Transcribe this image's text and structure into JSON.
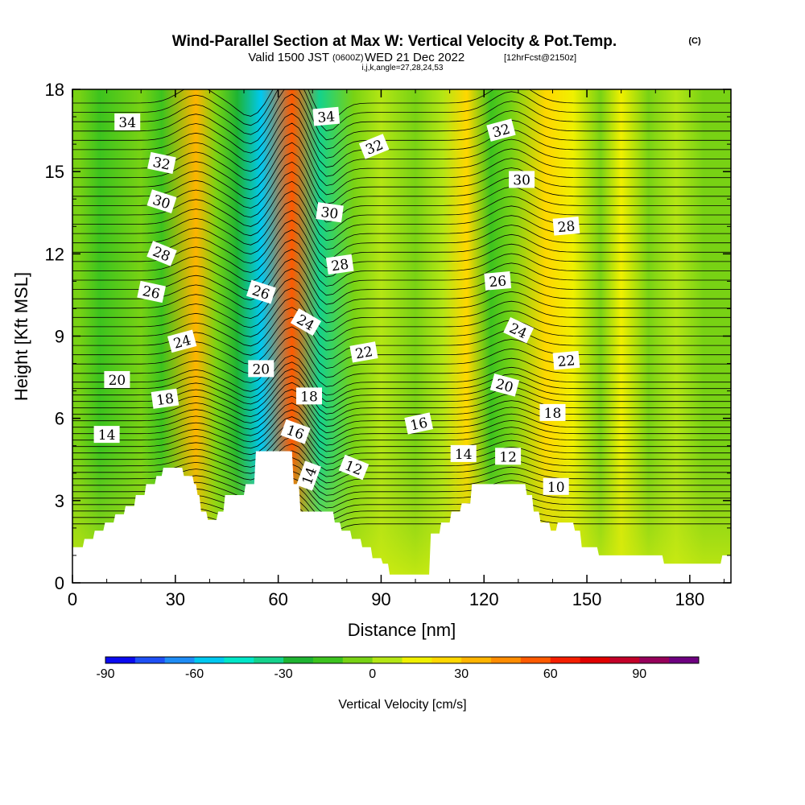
{
  "header": {
    "title": "Wind-Parallel Section at Max W: Vertical Velocity & Pot.Temp.",
    "title_suffix": "(C)",
    "subtitle_a": "Valid 1500 JST",
    "subtitle_b": "(0600Z)",
    "subtitle_c": "WED 21 Dec 2022",
    "subtitle_d": "[12hrFcst@2150z]",
    "subtitle_e": "i,j,k,angle=27,28,24,53"
  },
  "chart_data": {
    "type": "heatmap",
    "xlabel": "Distance [nm]",
    "ylabel": "Height [Kft MSL]",
    "xlim": [
      0,
      192
    ],
    "ylim": [
      0,
      18
    ],
    "x_ticks": [
      "0",
      "30",
      "60",
      "90",
      "120",
      "150",
      "180"
    ],
    "y_ticks": [
      "0",
      "3",
      "6",
      "9",
      "12",
      "15",
      "18"
    ],
    "colorbar": {
      "label": "Vertical Velocity [cm/s]",
      "range": [
        -90,
        110
      ],
      "ticks": [
        "-90",
        "-60",
        "-30",
        "0",
        "30",
        "60",
        "90"
      ],
      "colors": [
        "#0a0af0",
        "#1e50f5",
        "#1e8cf5",
        "#00c8f0",
        "#00e6c8",
        "#14d28c",
        "#1eb432",
        "#3cc31e",
        "#78d214",
        "#b4e614",
        "#f0f000",
        "#ffd700",
        "#ffb400",
        "#ff8c00",
        "#ff5a00",
        "#f51e00",
        "#e10000",
        "#c30028",
        "#96005a",
        "#6e0080"
      ]
    },
    "vertical_velocity_bands": [
      {
        "x": 2,
        "w": -8
      },
      {
        "x": 8,
        "w": -12
      },
      {
        "x": 20,
        "w": -10
      },
      {
        "x": 26,
        "w": -15
      },
      {
        "x": 36,
        "w": 30
      },
      {
        "x": 42,
        "w": -5
      },
      {
        "x": 48,
        "w": -25
      },
      {
        "x": 55,
        "w": -60
      },
      {
        "x": 64,
        "w": 55
      },
      {
        "x": 72,
        "w": -40
      },
      {
        "x": 82,
        "w": -5
      },
      {
        "x": 90,
        "w": 8
      },
      {
        "x": 100,
        "w": -10
      },
      {
        "x": 108,
        "w": 5
      },
      {
        "x": 115,
        "w": 20
      },
      {
        "x": 122,
        "w": -20
      },
      {
        "x": 128,
        "w": -5
      },
      {
        "x": 138,
        "w": 20
      },
      {
        "x": 146,
        "w": 10
      },
      {
        "x": 154,
        "w": -8
      },
      {
        "x": 160,
        "w": 12
      },
      {
        "x": 168,
        "w": -10
      },
      {
        "x": 176,
        "w": 0
      },
      {
        "x": 184,
        "w": -3
      }
    ],
    "isentropes": [
      10,
      12,
      14,
      16,
      18,
      20,
      22,
      24,
      26,
      28,
      30,
      32,
      34
    ],
    "isentrope_labels": [
      {
        "text": "34",
        "x": 16,
        "y": 16.8,
        "rot": 0
      },
      {
        "text": "34",
        "x": 74,
        "y": 17.0,
        "rot": -5
      },
      {
        "text": "32",
        "x": 26,
        "y": 15.3,
        "rot": 12
      },
      {
        "text": "32",
        "x": 88,
        "y": 15.9,
        "rot": -22
      },
      {
        "text": "32",
        "x": 125,
        "y": 16.5,
        "rot": -15
      },
      {
        "text": "30",
        "x": 26,
        "y": 13.9,
        "rot": 18
      },
      {
        "text": "30",
        "x": 75,
        "y": 13.5,
        "rot": 8
      },
      {
        "text": "30",
        "x": 131,
        "y": 14.7,
        "rot": 0
      },
      {
        "text": "28",
        "x": 26,
        "y": 12.0,
        "rot": 22
      },
      {
        "text": "28",
        "x": 78,
        "y": 11.6,
        "rot": -8
      },
      {
        "text": "28",
        "x": 144,
        "y": 13.0,
        "rot": -5
      },
      {
        "text": "26",
        "x": 23,
        "y": 10.6,
        "rot": 12
      },
      {
        "text": "26",
        "x": 55,
        "y": 10.6,
        "rot": 18
      },
      {
        "text": "26",
        "x": 124,
        "y": 11.0,
        "rot": -5
      },
      {
        "text": "24",
        "x": 32,
        "y": 8.8,
        "rot": -15
      },
      {
        "text": "24",
        "x": 68,
        "y": 9.5,
        "rot": 30
      },
      {
        "text": "24",
        "x": 130,
        "y": 9.2,
        "rot": 25
      },
      {
        "text": "22",
        "x": 85,
        "y": 8.4,
        "rot": -10
      },
      {
        "text": "22",
        "x": 144,
        "y": 8.1,
        "rot": -5
      },
      {
        "text": "20",
        "x": 13,
        "y": 7.4,
        "rot": 0
      },
      {
        "text": "20",
        "x": 55,
        "y": 7.8,
        "rot": 0
      },
      {
        "text": "20",
        "x": 126,
        "y": 7.2,
        "rot": 15
      },
      {
        "text": "18",
        "x": 27,
        "y": 6.7,
        "rot": -8
      },
      {
        "text": "18",
        "x": 69,
        "y": 6.8,
        "rot": 0
      },
      {
        "text": "18",
        "x": 140,
        "y": 6.2,
        "rot": 0
      },
      {
        "text": "16",
        "x": 65,
        "y": 5.5,
        "rot": 20
      },
      {
        "text": "16",
        "x": 101,
        "y": 5.8,
        "rot": -12
      },
      {
        "text": "14",
        "x": 10,
        "y": 5.4,
        "rot": 0
      },
      {
        "text": "14",
        "x": 69,
        "y": 3.9,
        "rot": -70
      },
      {
        "text": "14",
        "x": 114,
        "y": 4.7,
        "rot": 0
      },
      {
        "text": "12",
        "x": 82,
        "y": 4.2,
        "rot": 22
      },
      {
        "text": "12",
        "x": 127,
        "y": 4.6,
        "rot": 0
      },
      {
        "text": "10",
        "x": 141,
        "y": 3.5,
        "rot": 0
      }
    ],
    "terrain": [
      {
        "x": 0,
        "h": 1.3
      },
      {
        "x": 3,
        "h": 1.3
      },
      {
        "x": 3.5,
        "h": 1.6
      },
      {
        "x": 6,
        "h": 1.6
      },
      {
        "x": 6.5,
        "h": 1.9
      },
      {
        "x": 9,
        "h": 1.9
      },
      {
        "x": 9.5,
        "h": 2.2
      },
      {
        "x": 12,
        "h": 2.2
      },
      {
        "x": 12.5,
        "h": 2.5
      },
      {
        "x": 15,
        "h": 2.5
      },
      {
        "x": 15.5,
        "h": 2.8
      },
      {
        "x": 18,
        "h": 2.8
      },
      {
        "x": 18.5,
        "h": 3.2
      },
      {
        "x": 21,
        "h": 3.2
      },
      {
        "x": 21.5,
        "h": 3.6
      },
      {
        "x": 24,
        "h": 3.6
      },
      {
        "x": 24.5,
        "h": 3.9
      },
      {
        "x": 26,
        "h": 3.9
      },
      {
        "x": 26.5,
        "h": 4.2
      },
      {
        "x": 32,
        "h": 4.2
      },
      {
        "x": 32.5,
        "h": 3.9
      },
      {
        "x": 35,
        "h": 3.9
      },
      {
        "x": 35.5,
        "h": 3.6
      },
      {
        "x": 36,
        "h": 3.6
      },
      {
        "x": 36.5,
        "h": 3.2
      },
      {
        "x": 37,
        "h": 3.2
      },
      {
        "x": 37.5,
        "h": 2.6
      },
      {
        "x": 39,
        "h": 2.6
      },
      {
        "x": 39.5,
        "h": 2.3
      },
      {
        "x": 42,
        "h": 2.3
      },
      {
        "x": 42.5,
        "h": 2.6
      },
      {
        "x": 44,
        "h": 2.6
      },
      {
        "x": 44.5,
        "h": 3.2
      },
      {
        "x": 50,
        "h": 3.2
      },
      {
        "x": 50.5,
        "h": 3.6
      },
      {
        "x": 53,
        "h": 3.6
      },
      {
        "x": 53.5,
        "h": 4.8
      },
      {
        "x": 64,
        "h": 4.8
      },
      {
        "x": 64.5,
        "h": 3.6
      },
      {
        "x": 66,
        "h": 3.6
      },
      {
        "x": 66.5,
        "h": 2.6
      },
      {
        "x": 76,
        "h": 2.6
      },
      {
        "x": 76.5,
        "h": 2.2
      },
      {
        "x": 78,
        "h": 2.2
      },
      {
        "x": 78.5,
        "h": 1.9
      },
      {
        "x": 81,
        "h": 1.9
      },
      {
        "x": 81.5,
        "h": 1.6
      },
      {
        "x": 84,
        "h": 1.6
      },
      {
        "x": 84.5,
        "h": 1.3
      },
      {
        "x": 87,
        "h": 1.3
      },
      {
        "x": 87.5,
        "h": 0.9
      },
      {
        "x": 90,
        "h": 0.9
      },
      {
        "x": 90.5,
        "h": 0.7
      },
      {
        "x": 92,
        "h": 0.7
      },
      {
        "x": 92.5,
        "h": 0.3
      },
      {
        "x": 104,
        "h": 0.3
      },
      {
        "x": 104.5,
        "h": 1.8
      },
      {
        "x": 107,
        "h": 1.8
      },
      {
        "x": 107.5,
        "h": 2.2
      },
      {
        "x": 110,
        "h": 2.2
      },
      {
        "x": 110.5,
        "h": 2.6
      },
      {
        "x": 113,
        "h": 2.6
      },
      {
        "x": 113.5,
        "h": 2.9
      },
      {
        "x": 116,
        "h": 2.9
      },
      {
        "x": 116.5,
        "h": 3.6
      },
      {
        "x": 132,
        "h": 3.6
      },
      {
        "x": 132.5,
        "h": 3.2
      },
      {
        "x": 134,
        "h": 3.2
      },
      {
        "x": 134.5,
        "h": 2.6
      },
      {
        "x": 136,
        "h": 2.6
      },
      {
        "x": 136.5,
        "h": 2.2
      },
      {
        "x": 139,
        "h": 2.2
      },
      {
        "x": 139.5,
        "h": 1.9
      },
      {
        "x": 141,
        "h": 1.9
      },
      {
        "x": 141.5,
        "h": 2.2
      },
      {
        "x": 146,
        "h": 2.2
      },
      {
        "x": 146.5,
        "h": 1.9
      },
      {
        "x": 148,
        "h": 1.9
      },
      {
        "x": 148.5,
        "h": 1.3
      },
      {
        "x": 153,
        "h": 1.3
      },
      {
        "x": 153.5,
        "h": 1.0
      },
      {
        "x": 172,
        "h": 1.0
      },
      {
        "x": 172.5,
        "h": 0.7
      },
      {
        "x": 189,
        "h": 0.7
      },
      {
        "x": 189.5,
        "h": 1.0
      },
      {
        "x": 192,
        "h": 1.0
      }
    ]
  }
}
